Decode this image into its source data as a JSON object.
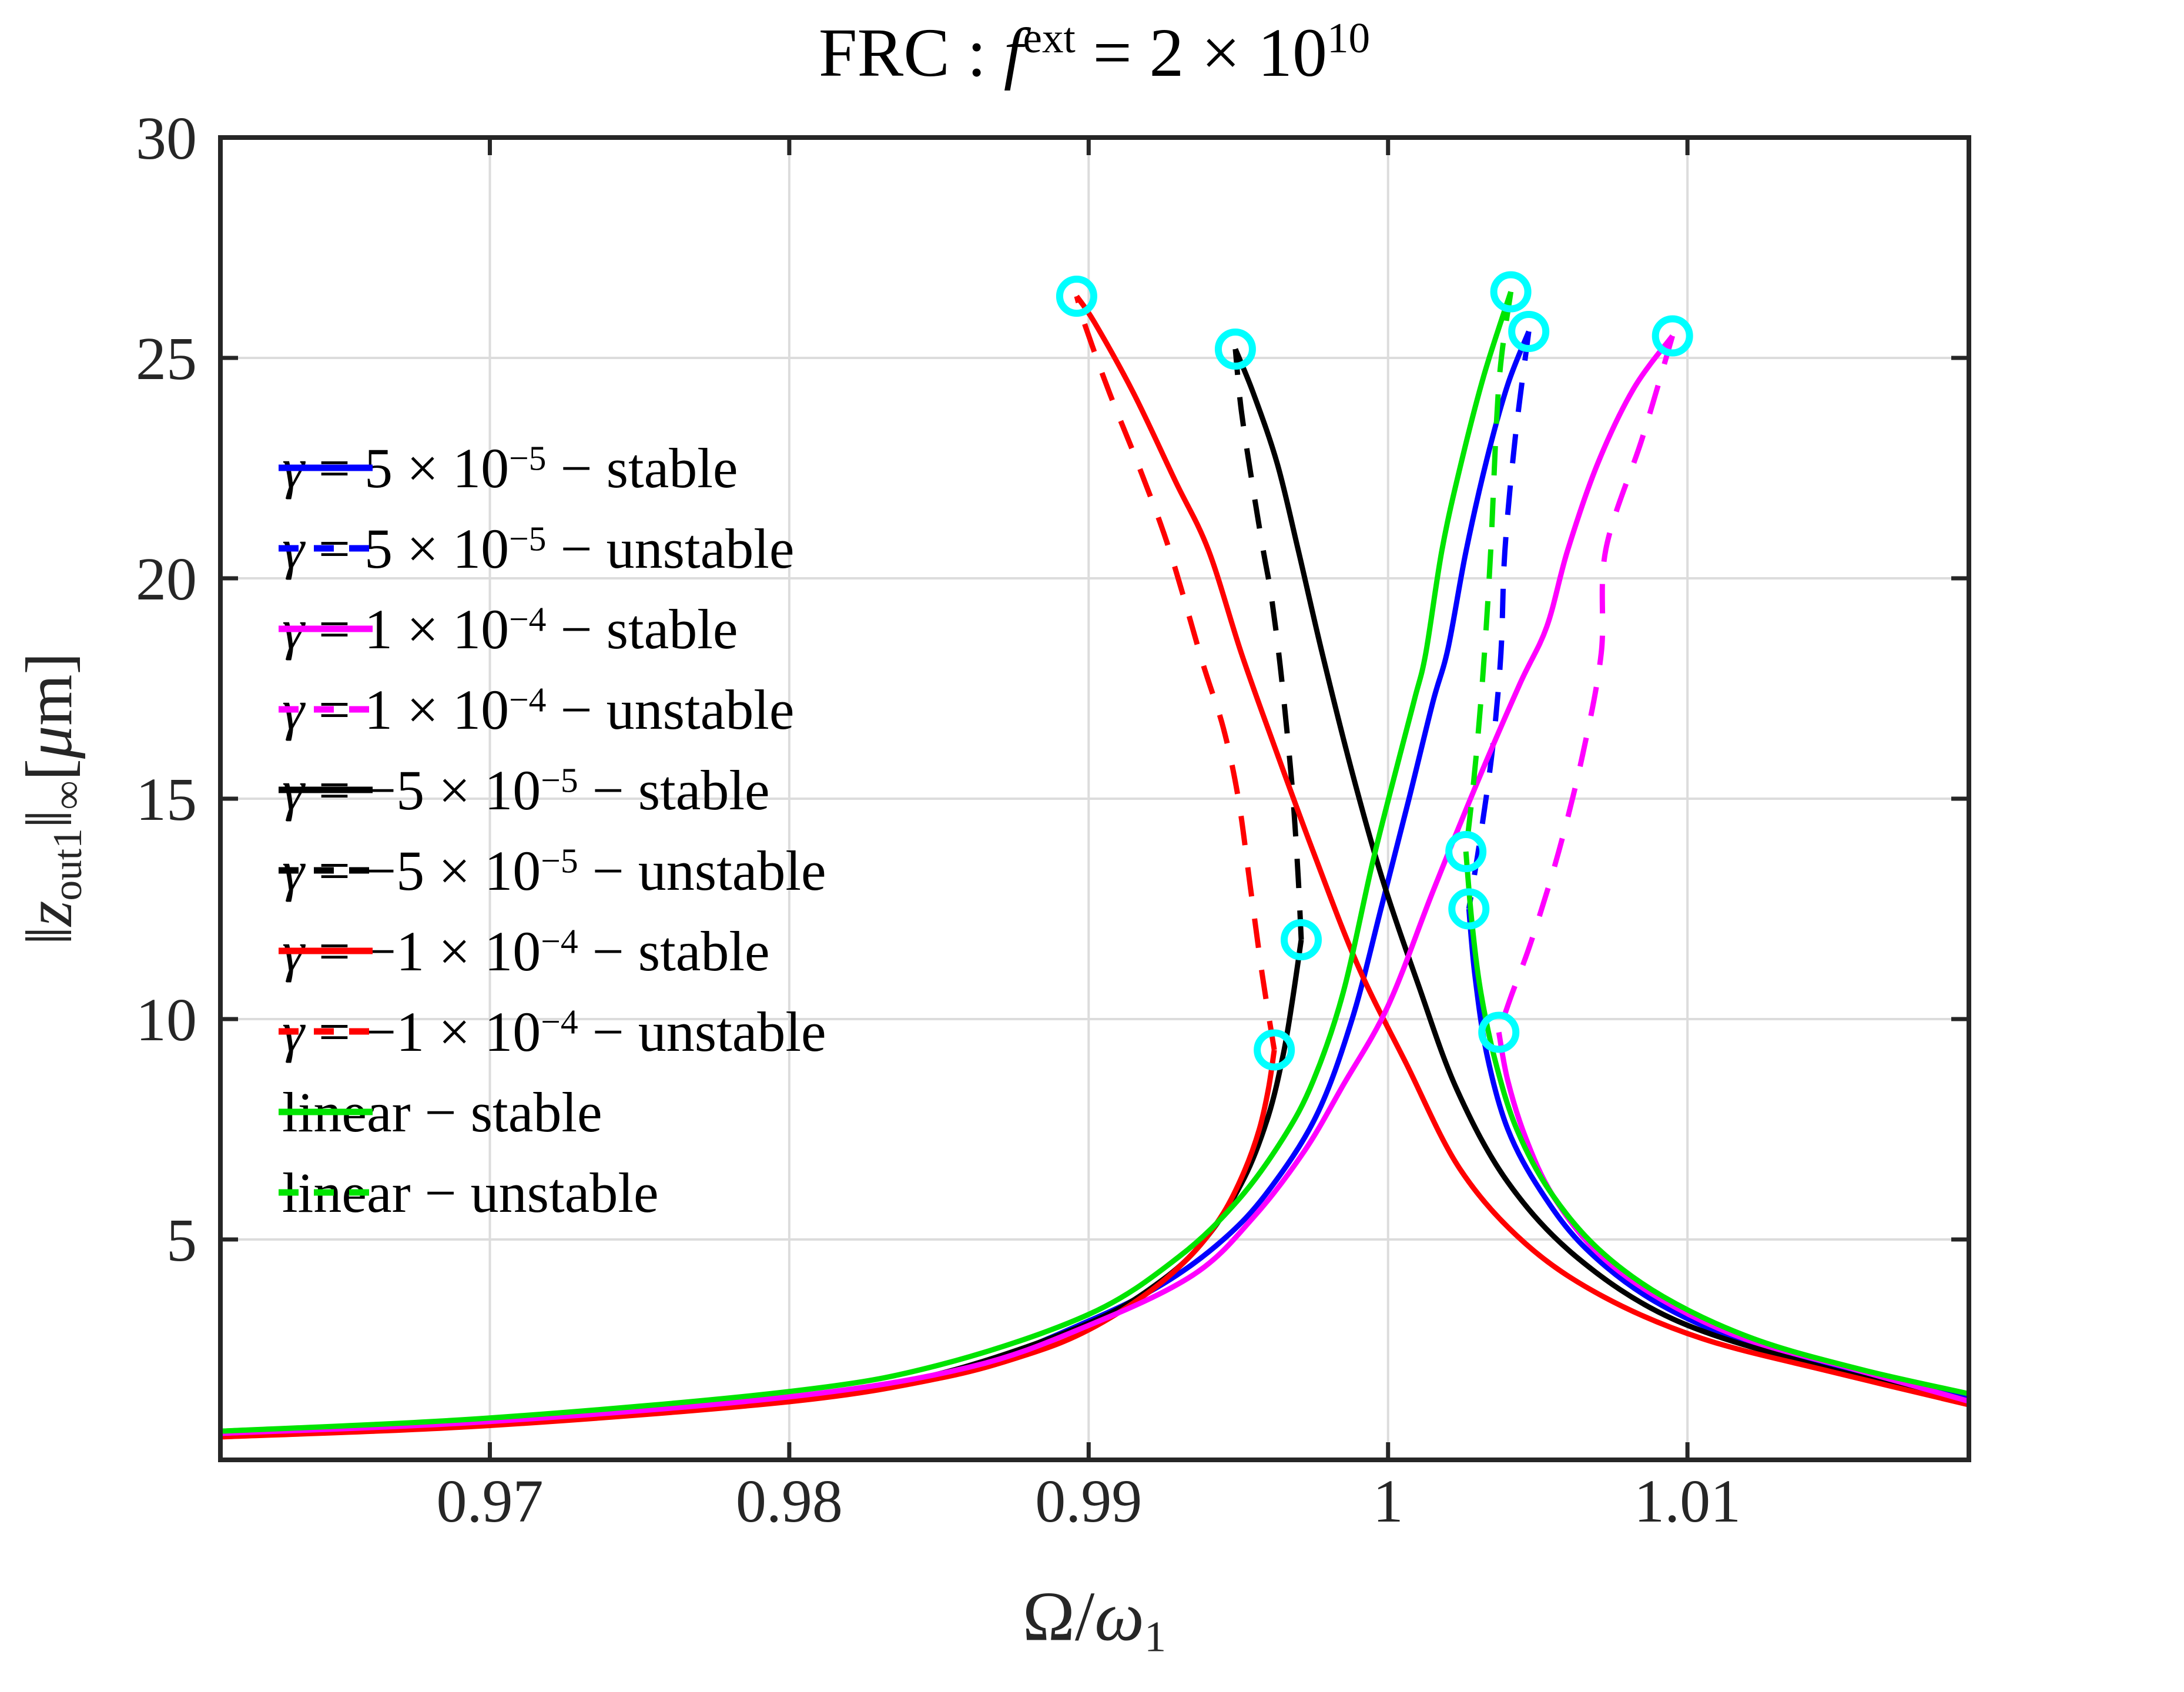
{
  "title": {
    "prefix": "FRC :  ",
    "f_symbol": "f",
    "f_sup": "ext",
    "base": " = 2 × 10",
    "exp": "10",
    "plain": "FRC : f^ext = 2 × 10^10"
  },
  "axes": {
    "xlabel": {
      "main": "Ω/",
      "omega": "ω",
      "sub": "1",
      "plain": "Ω/ω_1"
    },
    "ylabel": {
      "bar": "‖",
      "z": "z",
      "z_sub": "out1",
      "bar2": "‖",
      "inf_sub": "∞",
      "units_open": "[",
      "mu": "μ",
      "m": "m]",
      "plain": "‖z_out1‖_∞ [μm]"
    }
  },
  "chart_data": {
    "type": "line",
    "title": "FRC : f^ext = 2 × 10^10",
    "xlabel": "Ω/ω_1",
    "ylabel": "‖z_out1‖_∞ [μm]",
    "xlim": [
      0.961,
      1.0194
    ],
    "ylim": [
      0,
      30
    ],
    "xticks": [
      0.97,
      0.98,
      0.99,
      1,
      1.01
    ],
    "xtick_labels": [
      "0.97",
      "0.98",
      "0.99",
      "1",
      "1.01"
    ],
    "yticks": [
      5,
      10,
      15,
      20,
      25,
      30
    ],
    "ytick_labels": [
      "5",
      "10",
      "15",
      "20",
      "25",
      "30"
    ],
    "grid": true,
    "grid_color": "#dcdcdc",
    "axis_color": "#262626",
    "marker_meaning": "saddle-node (fold) points",
    "fold_markers": {
      "color": "#00ffff",
      "points": [
        [
          0.9896,
          26.4
        ],
        [
          0.9949,
          25.2
        ],
        [
          1.0041,
          26.5
        ],
        [
          1.0047,
          25.6
        ],
        [
          1.0095,
          25.5
        ],
        [
          0.9962,
          9.3
        ],
        [
          0.9971,
          11.8
        ],
        [
          1.0026,
          13.8
        ],
        [
          1.0027,
          12.5
        ],
        [
          1.0037,
          9.7
        ]
      ]
    },
    "series": [
      {
        "name": "γ = 5 × 10^-5",
        "color": "#0000ff",
        "stable": [
          [
            [
              0.961,
              0.62
            ],
            [
              0.968,
              0.85
            ],
            [
              0.975,
              1.12
            ],
            [
              0.981,
              1.5
            ],
            [
              0.986,
              2.1
            ],
            [
              0.99,
              3.15
            ],
            [
              0.9925,
              4.0
            ],
            [
              0.9945,
              5.0
            ],
            [
              0.996,
              6.1
            ],
            [
              0.9976,
              7.8
            ],
            [
              0.9988,
              10.0
            ],
            [
              0.9998,
              12.6
            ],
            [
              1.0007,
              15.0
            ],
            [
              1.0015,
              17.2
            ],
            [
              1.002,
              18.4
            ],
            [
              1.0026,
              20.6
            ],
            [
              1.0033,
              22.7
            ],
            [
              1.004,
              24.4
            ],
            [
              1.0047,
              25.6
            ]
          ],
          [
            [
              1.0027,
              12.5
            ],
            [
              1.0029,
              11.0
            ],
            [
              1.0033,
              9.2
            ],
            [
              1.004,
              7.5
            ],
            [
              1.0051,
              6.1
            ],
            [
              1.0066,
              4.8
            ],
            [
              1.0089,
              3.6
            ],
            [
              1.012,
              2.65
            ],
            [
              1.0158,
              1.95
            ],
            [
              1.0194,
              1.42
            ]
          ]
        ],
        "unstable": [
          [
            [
              1.0047,
              25.6
            ],
            [
              1.00425,
              23.2
            ],
            [
              1.0039,
              20.6
            ],
            [
              1.00377,
              18.3
            ],
            [
              1.0035,
              16.2
            ],
            [
              1.0031,
              14.2
            ],
            [
              1.0027,
              12.5
            ]
          ]
        ]
      },
      {
        "name": "γ = -5 × 10^-5",
        "color": "#000000",
        "stable": [
          [
            [
              0.961,
              0.56
            ],
            [
              0.97,
              0.82
            ],
            [
              0.98,
              1.38
            ],
            [
              0.985,
              1.95
            ],
            [
              0.99,
              3.1
            ],
            [
              0.9925,
              4.1
            ],
            [
              0.994,
              5.1
            ],
            [
              0.9952,
              6.4
            ],
            [
              0.996,
              7.8
            ],
            [
              0.9965,
              9.2
            ],
            [
              0.9968,
              10.4
            ],
            [
              0.9971,
              11.8
            ]
          ],
          [
            [
              0.9949,
              25.2
            ],
            [
              0.9955,
              24.2
            ],
            [
              0.9963,
              22.6
            ],
            [
              0.997,
              20.64
            ],
            [
              0.9978,
              18.3
            ],
            [
              0.9988,
              15.6
            ],
            [
              0.9998,
              13.2
            ],
            [
              1.001,
              10.8
            ],
            [
              1.0023,
              8.4
            ],
            [
              1.004,
              6.3
            ],
            [
              1.0063,
              4.6
            ],
            [
              1.0095,
              3.2
            ],
            [
              1.014,
              2.2
            ],
            [
              1.0194,
              1.3
            ]
          ]
        ],
        "unstable": [
          [
            [
              0.9971,
              11.8
            ],
            [
              0.997,
              13.2
            ],
            [
              0.99685,
              14.8
            ],
            [
              0.9967,
              16.0
            ],
            [
              0.9964,
              18.0
            ],
            [
              0.9961,
              19.6
            ],
            [
              0.99583,
              20.64
            ],
            [
              0.9955,
              22.0
            ],
            [
              0.9951,
              23.8
            ],
            [
              0.9949,
              25.2
            ]
          ]
        ]
      },
      {
        "name": "γ = -1 × 10^-4",
        "color": "#ff0000",
        "stable": [
          [
            [
              0.961,
              0.52
            ],
            [
              0.97,
              0.78
            ],
            [
              0.98,
              1.32
            ],
            [
              0.985,
              1.85
            ],
            [
              0.988,
              2.4
            ],
            [
              0.99,
              2.95
            ],
            [
              0.992,
              3.8
            ],
            [
              0.9935,
              4.7
            ],
            [
              0.9945,
              5.6
            ],
            [
              0.9952,
              6.55
            ],
            [
              0.9957,
              7.5
            ],
            [
              0.996,
              8.4
            ],
            [
              0.9962,
              9.3
            ]
          ],
          [
            [
              0.9896,
              26.4
            ],
            [
              0.9902,
              25.8
            ],
            [
              0.9915,
              24.2
            ],
            [
              0.9929,
              22.2
            ],
            [
              0.994,
              20.64
            ],
            [
              0.9951,
              18.3
            ],
            [
              0.9962,
              16.2
            ],
            [
              0.9975,
              13.8
            ],
            [
              0.999,
              11.2
            ],
            [
              1.0006,
              9.0
            ],
            [
              1.0024,
              6.6
            ],
            [
              1.0046,
              4.9
            ],
            [
              1.0072,
              3.7
            ],
            [
              1.0105,
              2.75
            ],
            [
              1.0148,
              2.0
            ],
            [
              1.0194,
              1.25
            ]
          ]
        ],
        "unstable": [
          [
            [
              0.9962,
              9.3
            ],
            [
              0.9958,
              11.0
            ],
            [
              0.9954,
              13.0
            ],
            [
              0.995,
              15.0
            ],
            [
              0.9945,
              16.6
            ],
            [
              0.9938,
              18.1
            ],
            [
              0.9927,
              20.64
            ],
            [
              0.9917,
              22.5
            ],
            [
              0.9907,
              24.2
            ],
            [
              0.9899,
              25.7
            ],
            [
              0.9896,
              26.4
            ]
          ]
        ]
      },
      {
        "name": "γ = 1 × 10^-4",
        "color": "#ff00ff",
        "stable": [
          [
            [
              0.961,
              0.6
            ],
            [
              0.97,
              0.87
            ],
            [
              0.98,
              1.43
            ],
            [
              0.986,
              2.1
            ],
            [
              0.99,
              3.05
            ],
            [
              0.9935,
              4.2
            ],
            [
              0.9955,
              5.5
            ],
            [
              0.9972,
              7.0
            ],
            [
              0.9985,
              8.5
            ],
            [
              1.0,
              10.3
            ],
            [
              1.0015,
              12.9
            ],
            [
              1.003,
              15.4
            ],
            [
              1.0044,
              17.6
            ],
            [
              1.0053,
              18.9
            ],
            [
              1.006,
              20.64
            ],
            [
              1.007,
              22.6
            ],
            [
              1.0082,
              24.3
            ],
            [
              1.0095,
              25.5
            ]
          ],
          [
            [
              1.0037,
              9.7
            ],
            [
              1.004,
              8.6
            ],
            [
              1.0046,
              7.3
            ],
            [
              1.0055,
              6.0
            ],
            [
              1.007,
              4.7
            ],
            [
              1.0091,
              3.65
            ],
            [
              1.0119,
              2.75
            ],
            [
              1.0156,
              2.05
            ],
            [
              1.0194,
              1.33
            ]
          ]
        ],
        "unstable": [
          [
            [
              1.0095,
              25.5
            ],
            [
              1.0085,
              23.2
            ],
            [
              1.00727,
              20.64
            ],
            [
              1.00712,
              18.3
            ],
            [
              1.0065,
              16.0
            ],
            [
              1.0057,
              13.8
            ],
            [
              1.0048,
              11.8
            ],
            [
              1.0041,
              10.5
            ],
            [
              1.0037,
              9.7
            ]
          ]
        ]
      },
      {
        "name": "linear",
        "color": "#00e400",
        "stable": [
          [
            [
              0.961,
              0.65
            ],
            [
              0.97,
              0.95
            ],
            [
              0.98,
              1.55
            ],
            [
              0.985,
              2.15
            ],
            [
              0.99,
              3.3
            ],
            [
              0.993,
              4.6
            ],
            [
              0.995,
              5.9
            ],
            [
              0.9965,
              7.3
            ],
            [
              0.9975,
              8.6
            ],
            [
              0.9985,
              10.6
            ],
            [
              0.9995,
              13.6
            ],
            [
              1.0004,
              16.0
            ],
            [
              1.0009,
              17.3
            ],
            [
              1.00126,
              18.3
            ],
            [
              1.0018,
              20.64
            ],
            [
              1.0024,
              22.5
            ],
            [
              1.0032,
              24.6
            ],
            [
              1.0041,
              26.5
            ]
          ],
          [
            [
              1.0026,
              13.8
            ],
            [
              1.0028,
              12.2
            ],
            [
              1.0031,
              10.6
            ],
            [
              1.0036,
              9.0
            ],
            [
              1.0043,
              7.5
            ],
            [
              1.0054,
              6.1
            ],
            [
              1.007,
              4.8
            ],
            [
              1.0092,
              3.7
            ],
            [
              1.0122,
              2.75
            ],
            [
              1.0158,
              2.05
            ],
            [
              1.0194,
              1.5
            ]
          ]
        ],
        "unstable": [
          [
            [
              1.0041,
              26.5
            ],
            [
              1.0037,
              24.4
            ],
            [
              1.00343,
              20.64
            ],
            [
              1.00322,
              18.3
            ],
            [
              1.003,
              16.4
            ],
            [
              1.0028,
              15.0
            ],
            [
              1.0026,
              13.8
            ]
          ]
        ]
      }
    ],
    "legend_position": "upper-left-inside"
  },
  "legend": {
    "entries": [
      {
        "gamma": true,
        "base": " = 5 × 10",
        "exp": "−5",
        "suffix": " − stable",
        "color": "#0000ff",
        "dashed": false,
        "plain": "γ = 5 × 10^−5 − stable"
      },
      {
        "gamma": true,
        "base": " = 5 × 10",
        "exp": "−5",
        "suffix": " − unstable",
        "color": "#0000ff",
        "dashed": true,
        "plain": "γ = 5 × 10^−5 − unstable"
      },
      {
        "gamma": true,
        "base": " = 1 × 10",
        "exp": "−4",
        "suffix": " − stable",
        "color": "#ff00ff",
        "dashed": false,
        "plain": "γ = 1 × 10^−4 − stable"
      },
      {
        "gamma": true,
        "base": " = 1 × 10",
        "exp": "−4",
        "suffix": " − unstable",
        "color": "#ff00ff",
        "dashed": true,
        "plain": "γ = 1 × 10^−4 − unstable"
      },
      {
        "gamma": true,
        "base": " = −5 × 10",
        "exp": "−5",
        "suffix": " − stable",
        "color": "#000000",
        "dashed": false,
        "plain": "γ = −5 × 10^−5 − stable"
      },
      {
        "gamma": true,
        "base": " = −5 × 10",
        "exp": "−5",
        "suffix": " − unstable",
        "color": "#000000",
        "dashed": true,
        "plain": "γ = −5 × 10^−5 − unstable"
      },
      {
        "gamma": true,
        "base": " = −1 × 10",
        "exp": "−4",
        "suffix": " − stable",
        "color": "#ff0000",
        "dashed": false,
        "plain": "γ = −1 × 10^−4 − stable"
      },
      {
        "gamma": true,
        "base": " = −1 × 10",
        "exp": "−4",
        "suffix": " − unstable",
        "color": "#ff0000",
        "dashed": true,
        "plain": "γ = −1 × 10^−4 − unstable"
      },
      {
        "gamma": false,
        "base": "linear",
        "exp": "",
        "suffix": " − stable",
        "color": "#00e400",
        "dashed": false,
        "plain": "linear − stable"
      },
      {
        "gamma": false,
        "base": "linear",
        "exp": "",
        "suffix": " − unstable",
        "color": "#00e400",
        "dashed": true,
        "plain": "linear − unstable"
      }
    ]
  }
}
